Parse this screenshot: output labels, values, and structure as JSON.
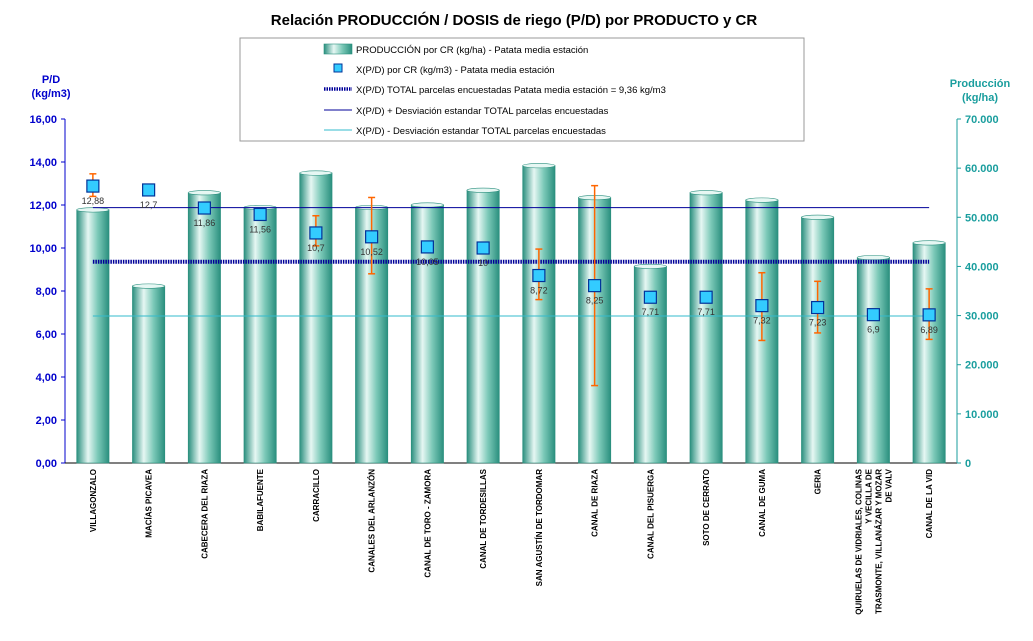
{
  "chart_data": {
    "type": "bar",
    "title": "Relación PRODUCCIÓN / DOSIS de riego (P/D) por PRODUCTO y CR",
    "y_left": {
      "label_line1": "P/D",
      "label_line2": "(kg/m3)",
      "range": [
        0,
        16
      ],
      "step": 2,
      "ticks": [
        "0,00",
        "2,00",
        "4,00",
        "6,00",
        "8,00",
        "10,00",
        "12,00",
        "14,00",
        "16,00"
      ]
    },
    "y_right": {
      "label_line1": "Producción",
      "label_line2": "(kg/ha)",
      "range": [
        0,
        70000
      ],
      "step": 10000,
      "ticks": [
        "0",
        "10.000",
        "20.000",
        "30.000",
        "40.000",
        "50.000",
        "60.000",
        "70.000"
      ]
    },
    "categories": [
      [
        "VILLAGONZALO"
      ],
      [
        "MACÍAS PICAVEA"
      ],
      [
        "CABECERA DEL RIAZA"
      ],
      [
        "BABILAFUENTE"
      ],
      [
        "CARRACILLO"
      ],
      [
        "CANALES DEL ARLANZÓN"
      ],
      [
        "CANAL DE TORO - ZAMORA"
      ],
      [
        "CANAL DE TORDESILLAS"
      ],
      [
        "SAN AGUSTÍN DE TORDOMAR"
      ],
      [
        "CANAL DE RIAZA"
      ],
      [
        "CANAL DEL PISUERGA"
      ],
      [
        "SOTO DE CERRATO"
      ],
      [
        "CANAL DE GUMA"
      ],
      [
        "GERIA"
      ],
      [
        "QUIRUELAS DE VIDRIALES, COLINAS",
        "Y VECILLA DE",
        "TRASMONTE, VILLANÁZAR Y MOZAR",
        "DE VALV"
      ],
      [
        "CANAL DE LA VID"
      ]
    ],
    "produccion": [
      51500,
      36000,
      55000,
      52000,
      59000,
      52000,
      52500,
      55500,
      60500,
      54000,
      40000,
      55000,
      53500,
      50000,
      41800,
      44800
    ],
    "pd": [
      12.88,
      12.7,
      11.86,
      11.56,
      10.7,
      10.52,
      10.05,
      10,
      8.72,
      8.25,
      7.71,
      7.71,
      7.32,
      7.23,
      6.9,
      6.89
    ],
    "pd_labels": [
      "12,88",
      "12,7",
      "11,86",
      "11,56",
      "10,7",
      "10,52",
      "10,05",
      "10",
      "8,72",
      "8,25",
      "7,71",
      "7,71",
      "7,32",
      "7,23",
      "6,9",
      "6,89"
    ],
    "error_bars": [
      [
        12.4,
        13.45
      ],
      null,
      null,
      null,
      [
        10.1,
        11.5
      ],
      [
        8.8,
        12.35
      ],
      null,
      null,
      [
        7.6,
        9.95
      ],
      [
        3.6,
        12.9
      ],
      null,
      null,
      [
        5.7,
        8.85
      ],
      [
        6.05,
        8.45
      ],
      null,
      [
        5.75,
        8.1
      ]
    ],
    "total_mean": 9.36,
    "mean_plus_sd": 11.88,
    "mean_minus_sd": 6.84,
    "legend": [
      "PRODUCCIÓN por CR (kg/ha) - Patata media estación",
      "X(P/D) por CR (kg/m3) - Patata media estación",
      "X(P/D) TOTAL parcelas encuestadas Patata media estación = 9,36 kg/m3",
      "X(P/D) + Desviación estandar TOTAL parcelas encuestadas",
      "X(P/D) - Desviación estandar TOTAL parcelas encuestadas"
    ],
    "colors": {
      "bar_light": "#e6f7f3",
      "bar_mid": "#7cc9b8",
      "bar_dark": "#2a8f7e",
      "marker_fill": "#33ccff",
      "marker_stroke": "#003399",
      "error_bar": "#ff6600",
      "mean_line": "#000099",
      "plus_sd_line": "#000099",
      "minus_sd_line": "#33bbcc",
      "left_axis": "#0000cc",
      "right_axis": "#1a9e9e"
    },
    "grid": false,
    "legend_position": "top-center"
  }
}
